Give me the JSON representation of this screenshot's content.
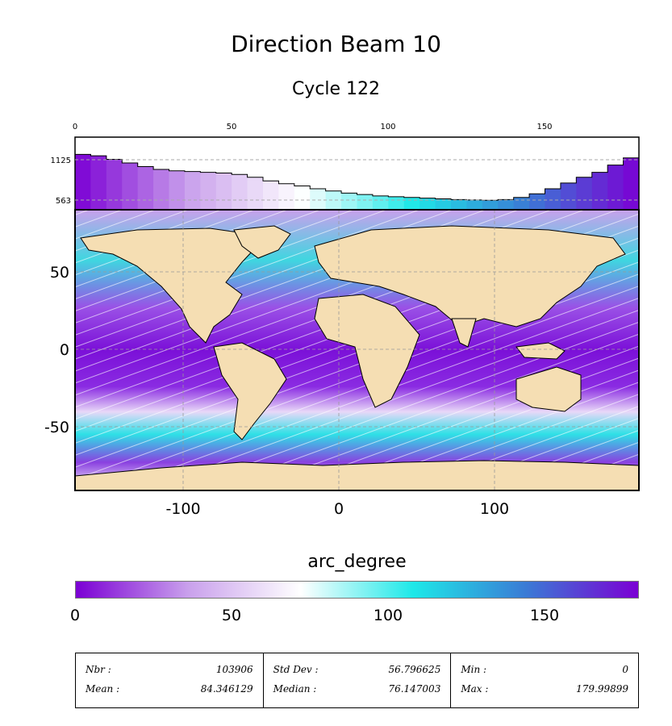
{
  "title": "Direction Beam 10",
  "subtitle": "Cycle 122",
  "histogram": {
    "x_ticks": [
      "0",
      "50",
      "100",
      "150"
    ],
    "y_ticks": [
      "563",
      "1125"
    ]
  },
  "map": {
    "x_ticks": [
      "-100",
      "0",
      "100"
    ],
    "y_ticks": [
      "50",
      "0",
      "-50"
    ],
    "land_color": "#f5deb3",
    "ocean_color": "#ffffff"
  },
  "colorbar": {
    "title": "arc_degree",
    "ticks": [
      "0",
      "50",
      "100",
      "150"
    ],
    "colors": [
      "#7b00d4",
      "#c9a0ec",
      "#ffffff",
      "#1ee8e8",
      "#3a7bd5",
      "#7b00d4"
    ]
  },
  "stats": {
    "nbr_label": "Nbr :",
    "nbr_value": "103906",
    "mean_label": "Mean :",
    "mean_value": "84.346129",
    "std_label": "Std Dev :",
    "std_value": "56.796625",
    "median_label": "Median :",
    "median_value": "76.147003",
    "min_label": "Min :",
    "min_value": "0",
    "max_label": "Max :",
    "max_value": "179.99899"
  },
  "chart_data": {
    "type": "bar",
    "x_range": [
      0,
      180
    ],
    "y_ticks_values": [
      563,
      1125
    ],
    "bins_x": [
      0,
      5,
      10,
      15,
      20,
      25,
      30,
      35,
      40,
      45,
      50,
      55,
      60,
      65,
      70,
      75,
      80,
      85,
      90,
      95,
      100,
      105,
      110,
      115,
      120,
      125,
      130,
      135,
      140,
      145,
      150,
      155,
      160,
      165,
      170,
      175
    ],
    "values": [
      1200,
      1180,
      1130,
      1080,
      1030,
      990,
      970,
      960,
      950,
      940,
      920,
      880,
      830,
      790,
      760,
      720,
      690,
      660,
      640,
      620,
      610,
      600,
      590,
      580,
      570,
      565,
      560,
      570,
      600,
      650,
      720,
      800,
      880,
      950,
      1050,
      1150
    ]
  }
}
